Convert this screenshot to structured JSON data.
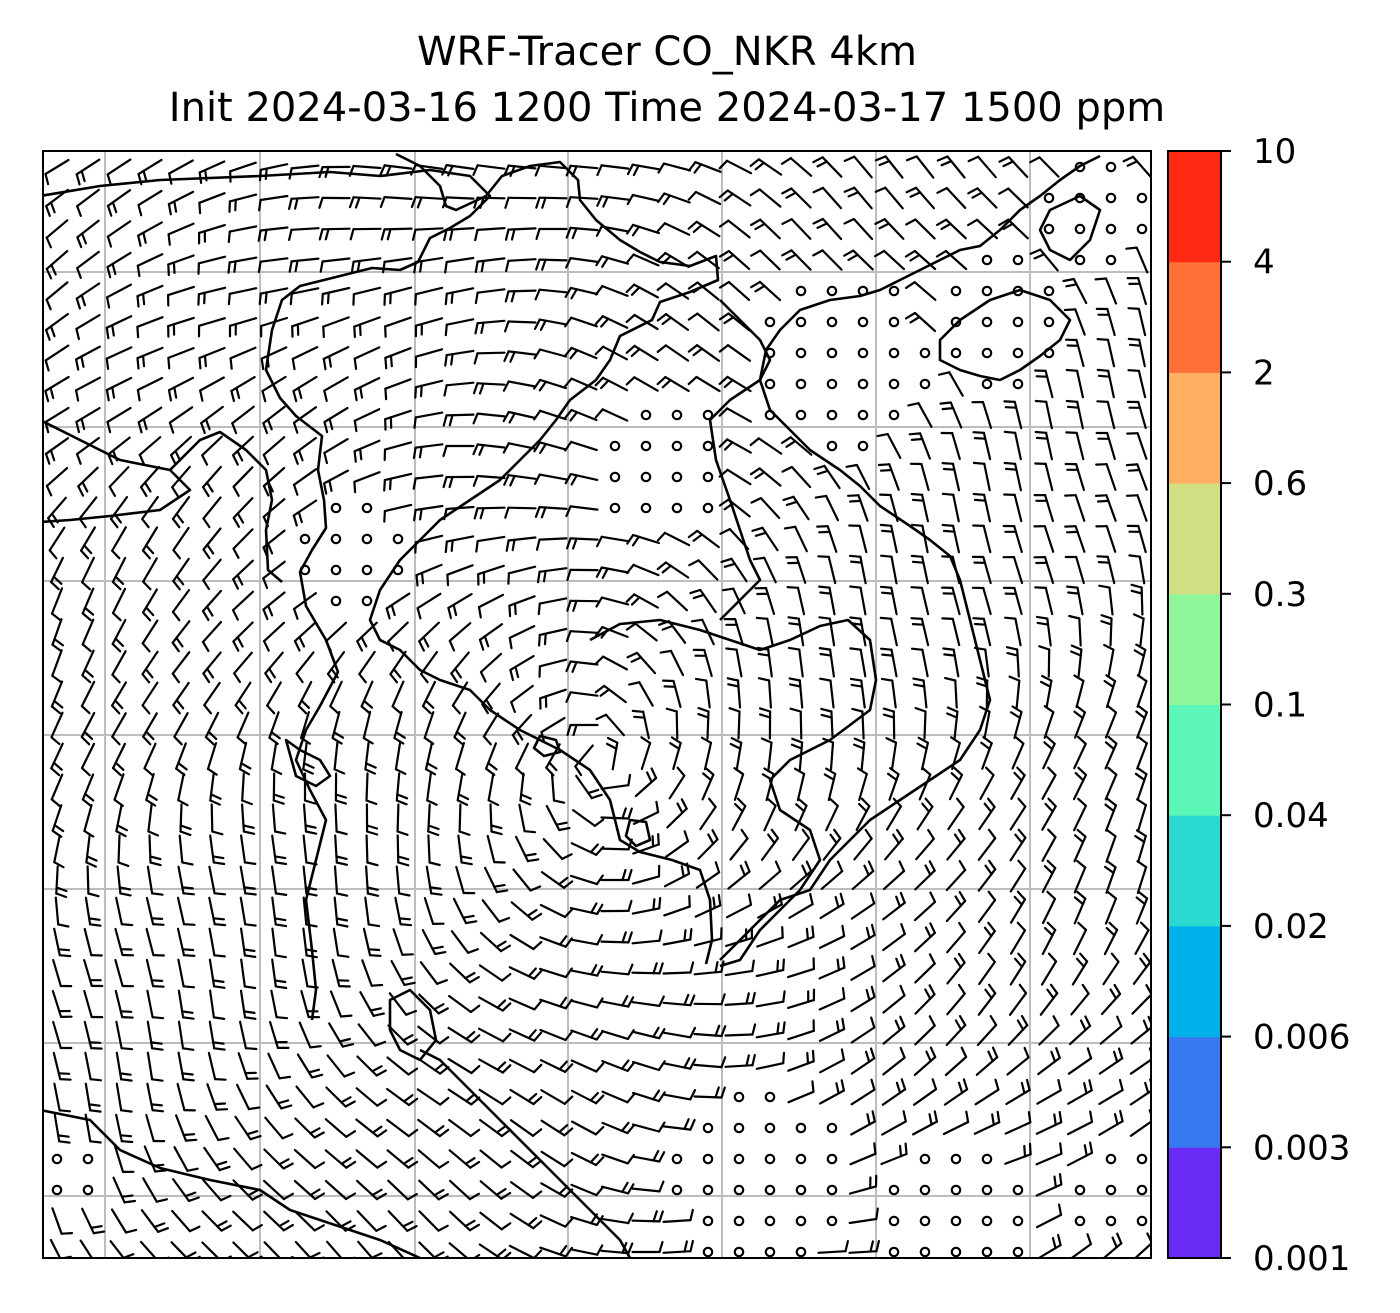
{
  "title": "WRF-Tracer CO_NKR 4km",
  "subtitle": "Init 2024-03-16 1200 Time 2024-03-17 1500 ppm",
  "colorbar": {
    "levels": [
      "0.001",
      "0.003",
      "0.006",
      "0.02",
      "0.04",
      "0.1",
      "0.3",
      "0.6",
      "2",
      "4",
      "10"
    ],
    "colors": [
      "#6a2cf5",
      "#3878ee",
      "#00b0ea",
      "#2adad0",
      "#5cf7b8",
      "#8ff79a",
      "#d1de84",
      "#ffae62",
      "#ff7038",
      "#ff2a14"
    ]
  },
  "map": {
    "grid_color": "#bdbdbd",
    "coastline_color": "#000000",
    "wind_barb_color": "#000000",
    "calm_marker": "circle"
  }
}
